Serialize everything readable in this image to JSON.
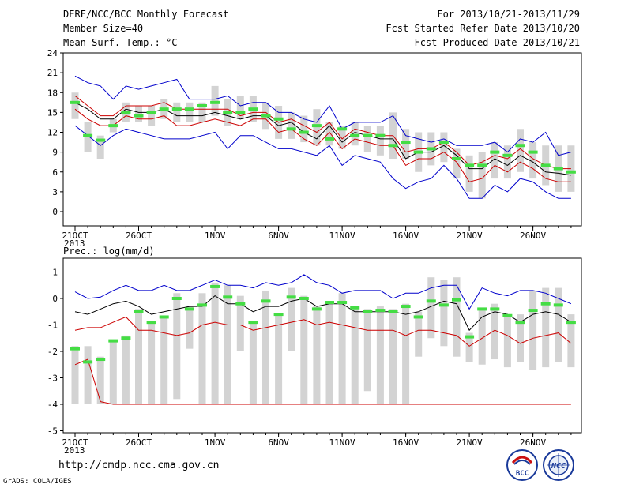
{
  "header": {
    "title": "DERF/NCC/BCC Monthly Forecast",
    "member_size": "Member Size=40",
    "variable": "Mean Surf. Temp.: °C",
    "period": "For 2013/10/21-2013/11/29",
    "fcst_started": "Fcst Started Refer Date 2013/10/20",
    "fcst_produced": "Fcst Produced Date 2013/10/21"
  },
  "footer": {
    "url": "http://cmdp.ncc.cma.gov.cn",
    "credit": "GrADS: COLA/IGES",
    "logo1_text": "BCC",
    "logo2_text": "NCC"
  },
  "colors": {
    "box": "#d3d3d3",
    "median": "#44dd44",
    "max_line": "#0000cc",
    "min_line": "#cc0000",
    "mean_line": "#000000"
  },
  "chart_data": [
    {
      "type": "line",
      "title": "Mean Surf. Temp.: °C",
      "xlabel": "",
      "ylabel": "",
      "x_ticks": [
        "21OCT",
        "26OCT",
        "1NOV",
        "6NOV",
        "11NOV",
        "16NOV",
        "21NOV",
        "26NOV"
      ],
      "x_tick_days": [
        0,
        5,
        11,
        16,
        21,
        26,
        31,
        36
      ],
      "x_year_label": "2013",
      "ylim": [
        0,
        24
      ],
      "y_ticks": [
        0,
        3,
        6,
        9,
        12,
        15,
        18,
        21,
        24
      ],
      "days": 40,
      "series": [
        {
          "name": "",
          "role": "max",
          "color": "#0000cc",
          "values": [
            20.5,
            19.5,
            19,
            17,
            19,
            18.5,
            19,
            19.5,
            20,
            17,
            17,
            17,
            17.5,
            16,
            16.5,
            16.5,
            15,
            15,
            14,
            13.5,
            16,
            12.5,
            13.5,
            13.5,
            13.5,
            14.5,
            11.5,
            11,
            10.5,
            11,
            10,
            10,
            10,
            10.5,
            9,
            11,
            10.5,
            12,
            8.5,
            9
          ]
        },
        {
          "name": "",
          "role": "upper",
          "color": "#cc0000",
          "values": [
            17.5,
            16,
            14.5,
            14.5,
            16,
            16,
            16,
            16.5,
            15.5,
            15.5,
            15.5,
            15.5,
            15.5,
            14.5,
            15,
            15,
            13.5,
            14,
            13,
            12,
            13.5,
            11,
            12.5,
            12,
            11.5,
            11.5,
            9,
            9.5,
            9.5,
            10.5,
            9,
            7,
            7.5,
            8.5,
            8,
            9.5,
            8,
            7,
            6.5,
            6.5
          ]
        },
        {
          "name": "",
          "role": "mean",
          "color": "#000000",
          "values": [
            16.5,
            15.5,
            14,
            14,
            15.5,
            15,
            15,
            15.5,
            14.5,
            14.5,
            14.5,
            15,
            14.5,
            14,
            14.5,
            14.5,
            13,
            13.5,
            12,
            11,
            13,
            10.5,
            12,
            11.5,
            11,
            11,
            8,
            9,
            9,
            10,
            8.5,
            6.5,
            6.5,
            8,
            7,
            8.5,
            7.5,
            6,
            5.8,
            5.5
          ]
        },
        {
          "name": "",
          "role": "lower",
          "color": "#cc0000",
          "values": [
            15.5,
            14,
            13,
            13,
            14.5,
            14,
            14,
            14.5,
            13,
            13,
            13.5,
            14,
            13.5,
            13,
            14,
            14,
            12,
            12.5,
            11,
            10,
            12,
            9.5,
            11,
            10.5,
            10,
            10,
            7,
            8,
            8,
            9,
            7.5,
            4.5,
            5,
            7,
            6,
            7.5,
            6.5,
            5,
            4.5,
            4.5
          ]
        },
        {
          "name": "",
          "role": "min",
          "color": "#0000cc",
          "values": [
            13,
            11.5,
            10,
            11.5,
            12.5,
            12,
            11.5,
            11,
            11,
            11,
            11.5,
            12,
            9.5,
            11.5,
            11.5,
            10.5,
            9.5,
            9.5,
            9,
            8.5,
            10,
            7,
            8.5,
            8,
            7.5,
            5,
            3.5,
            4.5,
            5,
            7,
            5,
            2,
            2,
            4,
            3,
            5,
            4.5,
            3,
            2,
            2
          ]
        },
        {
          "name": "",
          "role": "median",
          "color": "#44dd44",
          "values": [
            16.5,
            11.5,
            10.8,
            13,
            15,
            14.5,
            15,
            15.5,
            15.5,
            15.5,
            16,
            16.5,
            15,
            15,
            15.5,
            14.5,
            14,
            12.5,
            12,
            13,
            11,
            12.5,
            11.5,
            11.5,
            11.5,
            10,
            10.5,
            9,
            9.5,
            10.5,
            8,
            7,
            7,
            9,
            8.5,
            10,
            9,
            7,
            6.5,
            6
          ]
        }
      ],
      "box_range": [
        [
          14,
          18
        ],
        [
          9,
          13.5
        ],
        [
          8,
          11.5
        ],
        [
          12,
          14
        ],
        [
          13.5,
          16.5
        ],
        [
          13.5,
          16
        ],
        [
          13,
          16
        ],
        [
          14,
          17
        ],
        [
          13.5,
          16.5
        ],
        [
          13.5,
          16.5
        ],
        [
          13.5,
          16.5
        ],
        [
          14.5,
          19
        ],
        [
          13,
          17
        ],
        [
          14,
          17.5
        ],
        [
          13.5,
          17.5
        ],
        [
          12.5,
          16.5
        ],
        [
          11,
          16
        ],
        [
          11,
          15
        ],
        [
          10.5,
          14.5
        ],
        [
          10,
          15.5
        ],
        [
          10,
          13.5
        ],
        [
          9.5,
          13
        ],
        [
          10,
          13.5
        ],
        [
          9,
          13
        ],
        [
          8.5,
          13
        ],
        [
          8,
          15
        ],
        [
          8,
          12.5
        ],
        [
          6,
          12
        ],
        [
          7,
          12
        ],
        [
          7.5,
          12
        ],
        [
          5,
          9.5
        ],
        [
          3,
          8.5
        ],
        [
          2,
          9
        ],
        [
          5,
          10.5
        ],
        [
          5,
          10
        ],
        [
          6,
          12.5
        ],
        [
          5,
          10.5
        ],
        [
          4,
          10
        ],
        [
          3,
          10
        ],
        [
          3,
          10
        ]
      ]
    },
    {
      "type": "line",
      "title": "Prec.: log(mm/d)",
      "xlabel": "",
      "ylabel": "",
      "x_ticks": [
        "21OCT",
        "26OCT",
        "1NOV",
        "6NOV",
        "11NOV",
        "16NOV",
        "21NOV",
        "26NOV"
      ],
      "x_tick_days": [
        0,
        5,
        11,
        16,
        21,
        26,
        31,
        36
      ],
      "x_year_label": "2013",
      "ylim": [
        -5,
        1
      ],
      "y_ticks": [
        -5,
        -4,
        -3,
        -2,
        -1,
        0,
        1
      ],
      "days": 40,
      "series": [
        {
          "name": "",
          "role": "max",
          "color": "#0000cc",
          "values": [
            0.25,
            0,
            0.05,
            0.3,
            0.5,
            0.3,
            0.3,
            0.5,
            0.3,
            0.3,
            0.5,
            0.7,
            0.5,
            0.5,
            0.4,
            0.6,
            0.5,
            0.6,
            0.9,
            0.6,
            0.5,
            0.2,
            0.3,
            0.3,
            0.3,
            0,
            0.2,
            0.2,
            0.4,
            0.5,
            0.5,
            -0.4,
            0.4,
            0.2,
            0.1,
            0.3,
            0.3,
            0.2,
            0,
            -0.2
          ]
        },
        {
          "name": "",
          "role": "mean",
          "color": "#000000",
          "values": [
            -0.5,
            -0.6,
            -0.4,
            -0.2,
            -0.1,
            -0.3,
            -0.6,
            -0.5,
            -0.4,
            -0.3,
            -0.3,
            0.1,
            -0.2,
            -0.2,
            -0.5,
            -0.3,
            -0.3,
            -0.1,
            0,
            -0.3,
            -0.2,
            -0.2,
            -0.5,
            -0.5,
            -0.5,
            -0.5,
            -0.6,
            -0.5,
            -0.3,
            -0.1,
            -0.2,
            -1.2,
            -0.7,
            -0.5,
            -0.6,
            -0.9,
            -0.6,
            -0.5,
            -0.6,
            -0.9
          ]
        },
        {
          "name": "",
          "role": "min_upper",
          "color": "#cc0000",
          "values": [
            -1.2,
            -1.1,
            -1.1,
            -0.9,
            -0.7,
            -1.2,
            -1.2,
            -1.3,
            -1.4,
            -1.3,
            -1,
            -0.9,
            -1,
            -1,
            -1.2,
            -1.1,
            -1,
            -0.9,
            -0.8,
            -1,
            -0.9,
            -1,
            -1.1,
            -1.2,
            -1.2,
            -1.2,
            -1.4,
            -1.2,
            -1.2,
            -1.3,
            -1.4,
            -1.8,
            -1.5,
            -1.2,
            -1.4,
            -1.7,
            -1.5,
            -1.4,
            -1.3,
            -1.7
          ]
        },
        {
          "name": "",
          "role": "min_lower",
          "color": "#cc0000",
          "values": [
            -2.5,
            -2.3,
            -3.9,
            -4,
            -4,
            -4,
            -4,
            -4,
            -4,
            -4,
            -4,
            -4,
            -4,
            -4,
            -4,
            -4,
            -4,
            -4,
            -4,
            -4,
            -4,
            -4,
            -4,
            -4,
            -4,
            -4,
            -4,
            -4,
            -4,
            -4,
            -4,
            -4,
            -4,
            -4,
            -4,
            -4,
            -4,
            -4,
            -4,
            -4
          ]
        },
        {
          "name": "",
          "role": "median",
          "color": "#44dd44",
          "values": [
            -1.9,
            -2.4,
            -2.3,
            -1.6,
            -1.5,
            -0.5,
            -0.9,
            -0.7,
            0,
            -0.4,
            -0.25,
            0.45,
            0.05,
            -0.2,
            -0.9,
            -0.1,
            -0.6,
            0.05,
            0,
            -0.4,
            -0.15,
            -0.15,
            -0.35,
            -0.5,
            -0.45,
            -0.5,
            -0.3,
            -0.7,
            -0.1,
            -0.25,
            -0.05,
            -1.45,
            -0.4,
            -0.4,
            -0.65,
            -0.9,
            -0.45,
            -0.2,
            -0.25,
            -0.9
          ]
        }
      ],
      "box_range": [
        [
          -4,
          -1.8
        ],
        [
          -4,
          -1.8
        ],
        [
          -4,
          -2.2
        ],
        [
          -4,
          -1.6
        ],
        [
          -4,
          -1.4
        ],
        [
          -4,
          -0.4
        ],
        [
          -4,
          -0.9
        ],
        [
          -4,
          -0.7
        ],
        [
          -3.8,
          0.2
        ],
        [
          -1.9,
          -0.3
        ],
        [
          -4,
          0.2
        ],
        [
          -4,
          0.6
        ],
        [
          -4,
          0.5
        ],
        [
          -2,
          0.1
        ],
        [
          -4,
          -0.9
        ],
        [
          -4,
          0.3
        ],
        [
          -4,
          -0.6
        ],
        [
          -2,
          0.4
        ],
        [
          -4,
          0.1
        ],
        [
          -4,
          -0.3
        ],
        [
          -4,
          -0.1
        ],
        [
          -4,
          0.2
        ],
        [
          -4,
          -0.3
        ],
        [
          -3.5,
          -0.4
        ],
        [
          -4,
          -0.3
        ],
        [
          -4,
          -0.4
        ],
        [
          -4,
          -0.2
        ],
        [
          -2.2,
          -0.5
        ],
        [
          -1.5,
          0.8
        ],
        [
          -1.8,
          0.7
        ],
        [
          -2.2,
          0.8
        ],
        [
          -2.4,
          -1.3
        ],
        [
          -2.5,
          -0.4
        ],
        [
          -2.3,
          -0.2
        ],
        [
          -2.6,
          -0.6
        ],
        [
          -2.4,
          -0.6
        ],
        [
          -2.7,
          0.3
        ],
        [
          -2.6,
          0.4
        ],
        [
          -2.4,
          0.4
        ],
        [
          -2.6,
          -0.6
        ]
      ]
    }
  ]
}
